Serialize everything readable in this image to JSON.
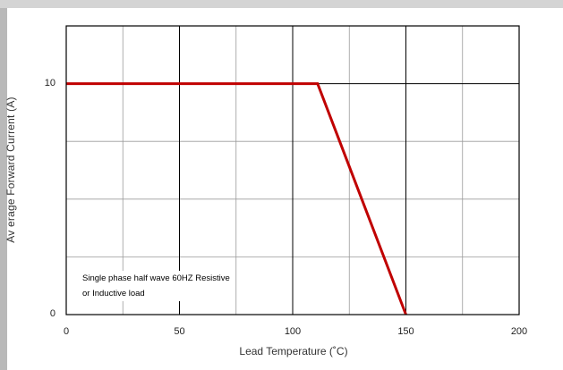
{
  "chart_data": {
    "type": "line",
    "title": "",
    "xlabel": "Lead Temperature (˚C)",
    "ylabel": "Av erage Forward Current (A)",
    "xlim": [
      0,
      200
    ],
    "ylim": [
      0,
      12.5
    ],
    "x_ticks": [
      0,
      50,
      100,
      150,
      200
    ],
    "y_ticks": [
      0,
      10
    ],
    "x_tick_labels": [
      "0",
      "50",
      "100",
      "150",
      "200"
    ],
    "y_tick_labels": [
      "0",
      "10"
    ],
    "x_minor_grid": [
      25,
      75,
      125,
      175
    ],
    "y_minor_grid": [
      2.5,
      5,
      7.5
    ],
    "grid": true,
    "series": [
      {
        "x": [
          0,
          111,
          150
        ],
        "y": [
          10,
          10,
          0
        ],
        "color": "#c00000"
      }
    ],
    "annotation": [
      "Single phase half wave 60HZ Resistive",
      "or Inductive load"
    ]
  }
}
